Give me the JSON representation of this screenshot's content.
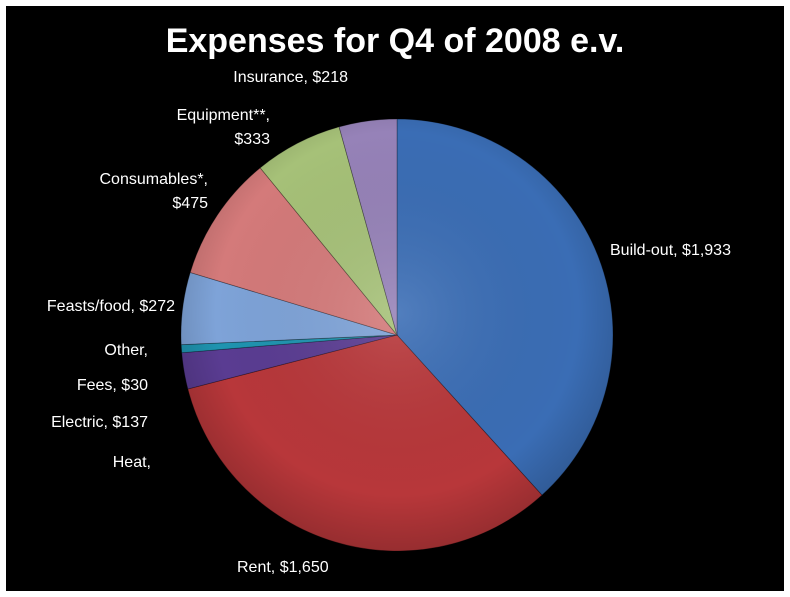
{
  "chart_data": {
    "type": "pie",
    "title": "Expenses for Q4 of 2008 e.v.",
    "legend": "none",
    "slices": [
      {
        "name": "Build-out",
        "value": 1933,
        "label": [
          "Build-out, $1,933"
        ],
        "color": "#3a6db5"
      },
      {
        "name": "Rent",
        "value": 1650,
        "label": [
          "Rent, $1,650"
        ],
        "color": "#b8373a"
      },
      {
        "name": "Heat",
        "value": 0,
        "label": [
          "Heat,"
        ],
        "color": "#7a5aa8"
      },
      {
        "name": "Electric",
        "value": 137,
        "label": [
          "Electric, $137"
        ],
        "color": "#5a3c92"
      },
      {
        "name": "Fees",
        "value": 30,
        "label": [
          "Fees, $30"
        ],
        "color": "#1f94b0"
      },
      {
        "name": "Other",
        "value": 0,
        "label": [
          "Other,"
        ],
        "color": "#2aa6c4"
      },
      {
        "name": "Feasts/food",
        "value": 272,
        "label": [
          "Feasts/food, $272"
        ],
        "color": "#7ea3d8"
      },
      {
        "name": "Consumables*",
        "value": 475,
        "label": [
          "Consumables*,",
          "$475"
        ],
        "color": "#d47a7a"
      },
      {
        "name": "Equipment**",
        "value": 333,
        "label": [
          "Equipment**,",
          "$333"
        ],
        "color": "#a6c178"
      },
      {
        "name": "Insurance",
        "value": 218,
        "label": [
          "Insurance, $218"
        ],
        "color": "#9682b8"
      }
    ]
  }
}
